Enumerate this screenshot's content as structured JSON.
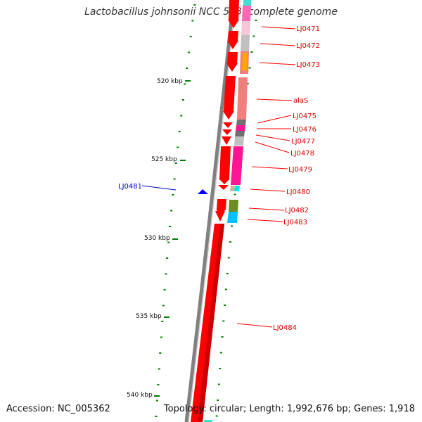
{
  "title": "Lactobacillus johnsonii NCC 533, complete genome",
  "footer": {
    "accession": "Accession: NC_005362",
    "summary": "Topology: circular; Length: 1,992,676 bp; Genes: 1,918"
  },
  "colors": {
    "forward_strand": "#ff0000",
    "reverse_label": "#0000cc",
    "forward_label": "#dd0000",
    "backbone": "#808080",
    "ticks": "#008000"
  },
  "scale_labels": [
    "520 kbp",
    "525 kbp",
    "530 kbp",
    "535 kbp",
    "540 kbp"
  ],
  "gene_labels": {
    "forward": [
      "LJ0471",
      "LJ0472",
      "LJ0473",
      "alaS",
      "LJ0475",
      "LJ0476",
      "LJ0477",
      "LJ0478",
      "LJ0479",
      "LJ0480",
      "LJ0482",
      "LJ0483",
      "LJ0484"
    ],
    "reverse": [
      "LJ0481"
    ]
  }
}
